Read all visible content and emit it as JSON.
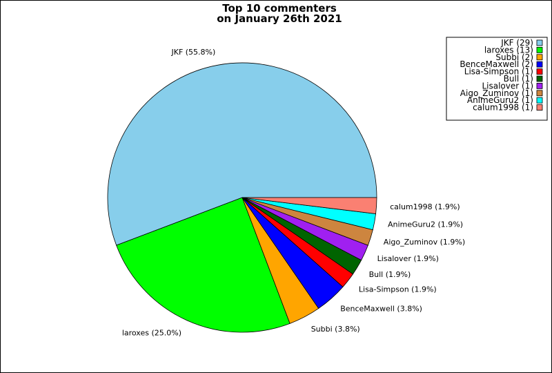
{
  "chart_data": {
    "type": "pie",
    "title": [
      "Top 10 commenters",
      "on January 26th 2021"
    ],
    "slices": [
      {
        "name": "JKF",
        "count": 29,
        "percent_label": "55.8%",
        "color": "#87ceeb"
      },
      {
        "name": "laroxes",
        "count": 13,
        "percent_label": "25.0%",
        "color": "#00ff00"
      },
      {
        "name": "Subbi",
        "count": 2,
        "percent_label": "3.8%",
        "color": "#ffa500"
      },
      {
        "name": "BenceMaxwell",
        "count": 2,
        "percent_label": "3.8%",
        "color": "#0000ff"
      },
      {
        "name": "Lisa-Simpson",
        "count": 1,
        "percent_label": "1.9%",
        "color": "#ff0000"
      },
      {
        "name": "Bull",
        "count": 1,
        "percent_label": "1.9%",
        "color": "#006400"
      },
      {
        "name": "Lisalover",
        "count": 1,
        "percent_label": "1.9%",
        "color": "#a020f0"
      },
      {
        "name": "Aigo_Zuminov",
        "count": 1,
        "percent_label": "1.9%",
        "color": "#cd853f"
      },
      {
        "name": "AnimeGuru2",
        "count": 1,
        "percent_label": "1.9%",
        "color": "#00ffff"
      },
      {
        "name": "calum1998",
        "count": 1,
        "percent_label": "1.9%",
        "color": "#fa8072"
      }
    ],
    "legend_position": "top-right"
  }
}
